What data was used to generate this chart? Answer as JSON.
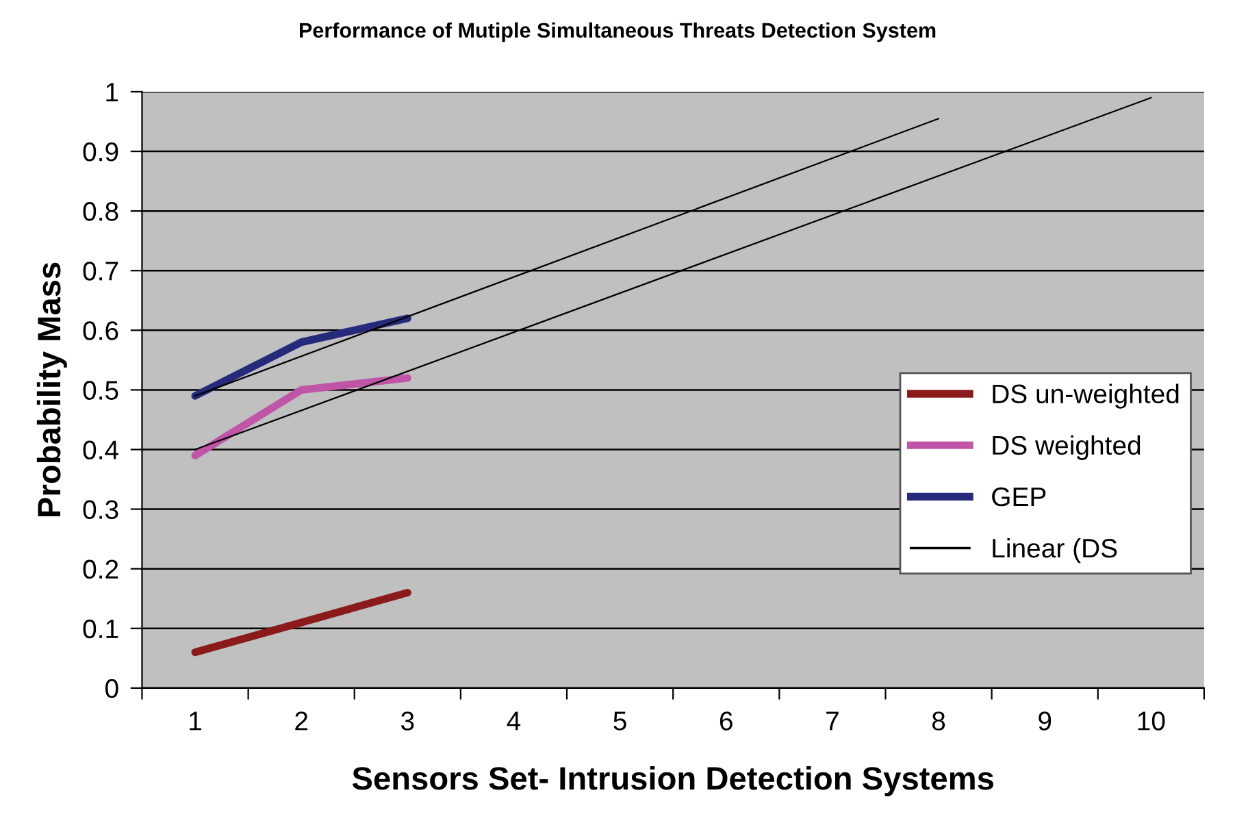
{
  "chart_data": {
    "type": "line",
    "title": "Performance of Mutiple Simultaneous Threats Detection System",
    "xlabel": "Sensors Set- Intrusion Detection Systems",
    "ylabel": "Probability Mass",
    "x": [
      1,
      2,
      3
    ],
    "series": [
      {
        "name": "DS un-weighted",
        "color": "#8b1a1a",
        "values": [
          0.06,
          0.11,
          0.16
        ]
      },
      {
        "name": "DS weighted",
        "color": "#c055a8",
        "values": [
          0.39,
          0.5,
          0.52
        ]
      },
      {
        "name": "GEP",
        "color": "#262a7a",
        "values": [
          0.49,
          0.58,
          0.62
        ]
      },
      {
        "name": "Linear (DS",
        "color": "#000000",
        "x": [
          1,
          10
        ],
        "values": [
          0.4,
          0.99
        ]
      },
      {
        "color": "#000000",
        "x": [
          1,
          8
        ],
        "values": [
          0.49,
          0.955
        ]
      }
    ],
    "xlim": [
      0.5,
      10.5
    ],
    "xticks": [
      {
        "value": 0.5,
        "label": null
      },
      1,
      {
        "value": 1.5,
        "label": null
      },
      2,
      {
        "value": 2.5,
        "label": null
      },
      3,
      {
        "value": 3.5,
        "label": null
      },
      4,
      {
        "value": 4.5,
        "label": null
      },
      5,
      {
        "value": 5.5,
        "label": null
      },
      6,
      {
        "value": 6.5,
        "label": null
      },
      7,
      {
        "value": 7.5,
        "label": null
      },
      8,
      {
        "value": 8.5,
        "label": null
      },
      9,
      {
        "value": 9.5,
        "label": null
      },
      10,
      {
        "value": 10.5,
        "label": null
      }
    ],
    "ylim": [
      0,
      1
    ],
    "yticks": [
      0,
      0.1,
      0.2,
      0.3,
      0.4,
      0.5,
      0.6,
      0.7,
      0.8,
      0.9,
      1
    ],
    "grid": "y",
    "legend": "right",
    "marker": "none",
    "line_style": "solid"
  }
}
